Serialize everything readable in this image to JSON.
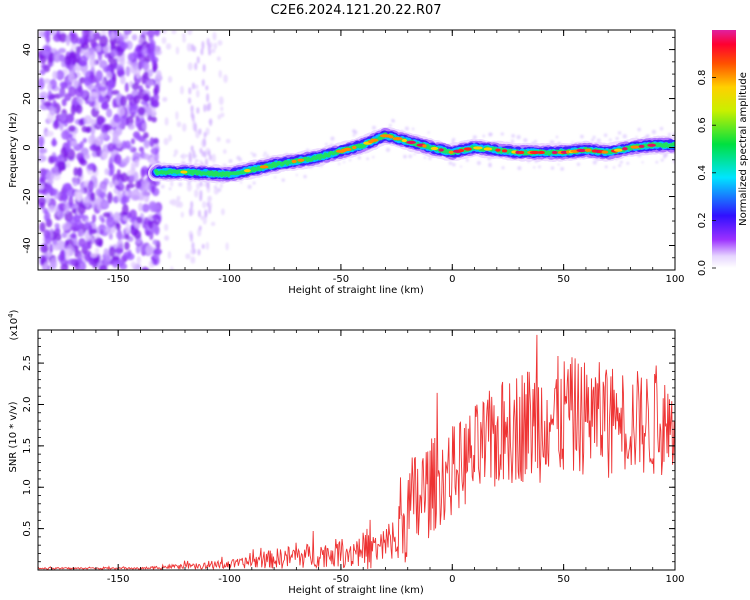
{
  "title": "C2E6.2024.121.20.22.R07",
  "chart_data": [
    {
      "type": "heatmap",
      "xlabel": "Height of straight line (km)",
      "ylabel": "Frequency (Hz)",
      "xlim": [
        -186,
        100
      ],
      "ylim": [
        -50,
        48
      ],
      "xticks": [
        -150,
        -100,
        -50,
        0,
        50,
        100
      ],
      "yticks": [
        -40,
        -20,
        0,
        20,
        40
      ],
      "colorbar": {
        "label": "Normalized spectral amplitude",
        "range": [
          0,
          1
        ],
        "ticks": [
          "0.0",
          "0.2",
          "0.4",
          "0.6",
          "0.8"
        ],
        "colormap": "rainbow (white, purple, blue, cyan, green, yellow, orange, red, magenta)"
      },
      "ridge": {
        "x": [
          -133,
          -120,
          -100,
          -80,
          -60,
          -40,
          -30,
          -22,
          -10,
          0,
          10,
          20,
          30,
          40,
          50,
          60,
          70,
          80,
          90,
          100
        ],
        "frequency_hz": [
          -10,
          -10,
          -11,
          -7,
          -4,
          1,
          5,
          3,
          0,
          -2,
          0,
          -1,
          -2,
          -2,
          -2,
          -1,
          -2,
          0,
          1,
          1
        ]
      },
      "noise_region_x": [
        -186,
        -133
      ]
    },
    {
      "type": "line",
      "xlabel": "Height of straight line (km)",
      "ylabel": "SNR (10 * v/v)",
      "y_scale_label": "(x10",
      "y_scale_exp": "4",
      "y_scale_suffix": ")",
      "xlim": [
        -186,
        100
      ],
      "ylim": [
        0,
        2.9
      ],
      "xticks": [
        -150,
        -100,
        -50,
        0,
        50,
        100
      ],
      "yticks": [
        "0.5",
        "1.0",
        "1.5",
        "2.0",
        "2.5"
      ],
      "series": [
        {
          "color": "#ee3333",
          "envelope": {
            "x": [
              -186,
              -160,
              -140,
              -125,
              -115,
              -105,
              -95,
              -85,
              -75,
              -65,
              -55,
              -45,
              -35,
              -25,
              -20,
              -15,
              -10,
              -5,
              0,
              5,
              10,
              20,
              30,
              40,
              50,
              60,
              70,
              80,
              90,
              100
            ],
            "mean": [
              0.02,
              0.02,
              0.02,
              0.04,
              0.04,
              0.06,
              0.08,
              0.12,
              0.15,
              0.17,
              0.2,
              0.22,
              0.22,
              0.35,
              0.7,
              0.85,
              1.0,
              1.1,
              1.2,
              1.3,
              1.4,
              1.6,
              1.75,
              1.8,
              1.85,
              1.85,
              1.8,
              1.8,
              1.75,
              1.75
            ],
            "spread": [
              0.01,
              0.01,
              0.01,
              0.03,
              0.04,
              0.05,
              0.06,
              0.1,
              0.14,
              0.15,
              0.16,
              0.2,
              0.22,
              0.35,
              0.6,
              0.7,
              0.6,
              0.55,
              0.55,
              0.55,
              0.6,
              0.65,
              0.7,
              0.75,
              0.75,
              0.7,
              0.7,
              0.65,
              0.65,
              0.6
            ]
          }
        }
      ]
    }
  ]
}
